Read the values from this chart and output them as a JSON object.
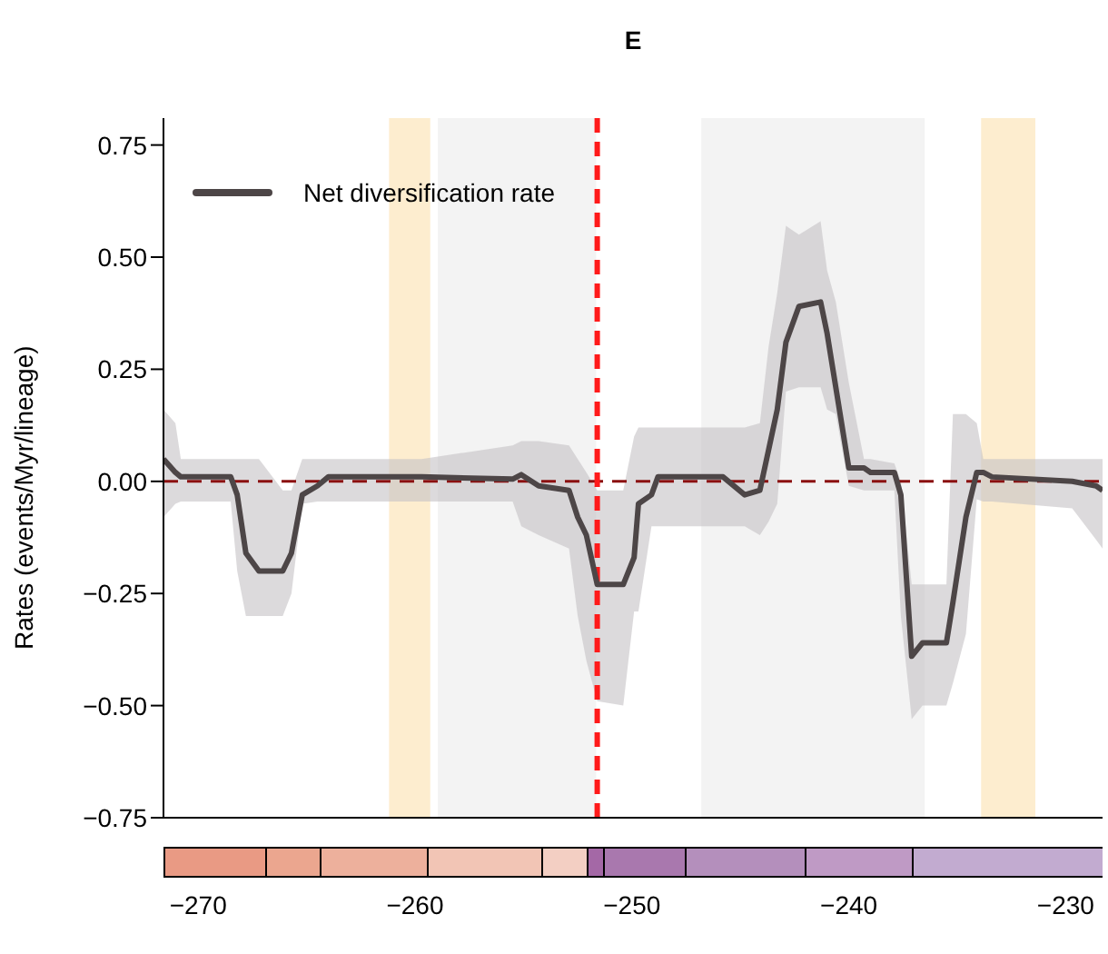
{
  "chart_data": {
    "type": "line",
    "title": "E",
    "ylabel": "Rates (events/Myr/lineage)",
    "x": [
      -271.6,
      -271.05,
      -270.8,
      -268.5,
      -268.2,
      -267.8,
      -267.2,
      -266.1,
      -265.7,
      -265.2,
      -264.5,
      -264.0,
      -259.7,
      -255.5,
      -255.1,
      -254.3,
      -252.9,
      -252.5,
      -252.1,
      -251.6,
      -250.4,
      -249.9,
      -249.7,
      -249.1,
      -248.8,
      -245.8,
      -244.8,
      -244.1,
      -243.7,
      -243.3,
      -242.9,
      -242.3,
      -241.3,
      -241.0,
      -240.6,
      -240.0,
      -239.3,
      -239.0,
      -237.9,
      -237.6,
      -237.1,
      -236.6,
      -235.5,
      -235.2,
      -234.6,
      -234.1,
      -233.8,
      -233.4,
      -229.7,
      -228.6,
      -228.3
    ],
    "series": [
      {
        "name": "Net diversification rate",
        "color": "#4d4647",
        "values": [
          0.05,
          0.02,
          0.01,
          0.01,
          -0.03,
          -0.16,
          -0.2,
          -0.2,
          -0.16,
          -0.03,
          -0.01,
          0.01,
          0.01,
          0.005,
          0.015,
          -0.01,
          -0.02,
          -0.08,
          -0.12,
          -0.23,
          -0.23,
          -0.17,
          -0.05,
          -0.03,
          0.01,
          0.01,
          -0.03,
          -0.02,
          0.07,
          0.16,
          0.31,
          0.39,
          0.4,
          0.33,
          0.21,
          0.03,
          0.03,
          0.02,
          0.02,
          -0.03,
          -0.39,
          -0.36,
          -0.36,
          -0.27,
          -0.08,
          0.02,
          0.02,
          0.01,
          0.0,
          -0.01,
          -0.02
        ],
        "lower": [
          -0.08,
          -0.05,
          -0.045,
          -0.045,
          -0.2,
          -0.3,
          -0.3,
          -0.3,
          -0.25,
          -0.05,
          -0.045,
          -0.045,
          -0.045,
          -0.045,
          -0.1,
          -0.12,
          -0.15,
          -0.3,
          -0.4,
          -0.49,
          -0.5,
          -0.29,
          -0.29,
          -0.1,
          -0.1,
          -0.1,
          -0.1,
          -0.12,
          -0.09,
          -0.05,
          0.2,
          0.21,
          0.21,
          0.16,
          0.15,
          -0.01,
          -0.02,
          -0.02,
          -0.02,
          -0.3,
          -0.53,
          -0.5,
          -0.5,
          -0.45,
          -0.34,
          -0.04,
          -0.045,
          -0.045,
          -0.06,
          -0.13,
          -0.15
        ],
        "upper": [
          0.16,
          0.13,
          0.05,
          0.05,
          0.05,
          0.05,
          0.05,
          -0.02,
          -0.02,
          0.05,
          0.05,
          0.05,
          0.05,
          0.08,
          0.09,
          0.09,
          0.08,
          0.05,
          0.02,
          -0.02,
          -0.02,
          0.1,
          0.12,
          0.12,
          0.12,
          0.12,
          0.12,
          0.13,
          0.3,
          0.42,
          0.57,
          0.55,
          0.58,
          0.47,
          0.4,
          0.22,
          0.05,
          0.05,
          0.04,
          0.0,
          -0.23,
          -0.23,
          -0.23,
          0.15,
          0.15,
          0.13,
          0.05,
          0.05,
          0.05,
          0.05,
          0.05
        ]
      }
    ],
    "xlim": [
      -271.6,
      -228.3
    ],
    "xticks": [
      {
        "value": -270,
        "label": "−270"
      },
      {
        "value": -260,
        "label": "−260"
      },
      {
        "value": -250,
        "label": "−250"
      },
      {
        "value": -240,
        "label": "−240"
      },
      {
        "value": -230,
        "label": "−230"
      }
    ],
    "ylim": [
      -0.75,
      0.81
    ],
    "yticks": [
      {
        "value": -0.75,
        "label": "−0.75"
      },
      {
        "value": -0.5,
        "label": "−0.50"
      },
      {
        "value": -0.25,
        "label": "−0.25"
      },
      {
        "value": 0,
        "label": "0.00"
      },
      {
        "value": 0.25,
        "label": "0.25"
      },
      {
        "value": 0.5,
        "label": "0.50"
      },
      {
        "value": 0.75,
        "label": "0.75"
      }
    ],
    "ref_lines": [
      {
        "axis": "y",
        "value": 0,
        "color": "#8b1010",
        "line_style": "dashed"
      },
      {
        "axis": "x",
        "value": -251.6,
        "color": "#ff1a1a",
        "line_style": "dashed"
      }
    ],
    "bands": [
      {
        "axis": "x",
        "from": -261.2,
        "to": -259.3,
        "color": "#fdedcf"
      },
      {
        "axis": "x",
        "from": -258.95,
        "to": -251.65,
        "color": "#f3f3f3"
      },
      {
        "axis": "x",
        "from": -246.8,
        "to": -236.5,
        "color": "#f3f3f3"
      },
      {
        "axis": "x",
        "from": -233.9,
        "to": -231.4,
        "color": "#fdedcf"
      }
    ],
    "legend": "top left",
    "grid": false,
    "marker": "none",
    "line_style": "solid"
  }
}
